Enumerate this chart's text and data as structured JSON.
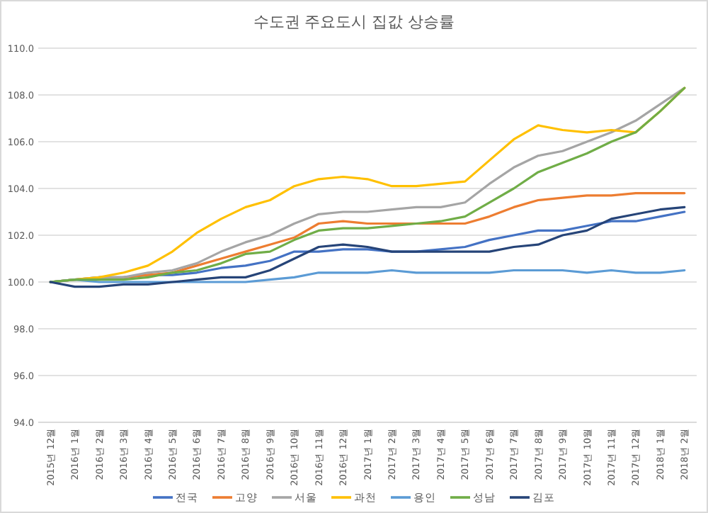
{
  "chart_data": {
    "type": "line",
    "title": "수도권 주요도시 집값 상승률",
    "categories": [
      "2015년 12월",
      "2016년 1월",
      "2016년 2월",
      "2016년 3월",
      "2016년 4월",
      "2016년 5월",
      "2016년 6월",
      "2016년 7월",
      "2016년 8월",
      "2016년 9월",
      "2016년 10월",
      "2016년 11월",
      "2016년 12월",
      "2017년 1월",
      "2017년 2월",
      "2017년 3월",
      "2017년 4월",
      "2017년 5월",
      "2017년 6월",
      "2017년 7월",
      "2017년 8월",
      "2017년 9월",
      "2017년 10월",
      "2017년 11월",
      "2017년 12월",
      "2018년 1월",
      "2018년 2월"
    ],
    "series": [
      {
        "name": "전국",
        "color": "#4472c4",
        "values": [
          100,
          100.1,
          100.2,
          100.2,
          100.3,
          100.3,
          100.4,
          100.6,
          100.7,
          100.9,
          101.3,
          101.3,
          101.4,
          101.4,
          101.3,
          101.3,
          101.4,
          101.5,
          101.8,
          102.0,
          102.2,
          102.2,
          102.4,
          102.6,
          102.6,
          102.8,
          103.0
        ]
      },
      {
        "name": "고양",
        "color": "#ed7d31",
        "values": [
          100,
          100.1,
          100.1,
          100.2,
          100.3,
          100.4,
          100.7,
          101.0,
          101.3,
          101.6,
          101.9,
          102.5,
          102.6,
          102.5,
          102.5,
          102.5,
          102.5,
          102.5,
          102.8,
          103.2,
          103.5,
          103.6,
          103.7,
          103.7,
          103.8,
          103.8,
          103.8
        ]
      },
      {
        "name": "서울",
        "color": "#a5a5a5",
        "values": [
          100,
          100.1,
          100.2,
          100.2,
          100.4,
          100.5,
          100.8,
          101.3,
          101.7,
          102.0,
          102.5,
          102.9,
          103.0,
          103.0,
          103.1,
          103.2,
          103.2,
          103.4,
          104.2,
          104.9,
          105.4,
          105.6,
          106.0,
          106.4,
          106.9,
          107.6,
          108.3
        ]
      },
      {
        "name": "과천",
        "color": "#ffc000",
        "values": [
          100,
          100.1,
          100.2,
          100.4,
          100.7,
          101.3,
          102.1,
          102.7,
          103.2,
          103.5,
          104.1,
          104.4,
          104.5,
          104.4,
          104.1,
          104.1,
          104.2,
          104.3,
          105.2,
          106.1,
          106.7,
          106.5,
          106.4,
          106.5,
          106.4,
          107.3,
          108.3
        ]
      },
      {
        "name": "용인",
        "color": "#5b9bd5",
        "values": [
          100,
          100.1,
          100.0,
          100.0,
          100.0,
          100.0,
          100.0,
          100.0,
          100.0,
          100.1,
          100.2,
          100.4,
          100.4,
          100.4,
          100.5,
          100.4,
          100.4,
          100.4,
          100.4,
          100.5,
          100.5,
          100.5,
          100.4,
          100.5,
          100.4,
          100.4,
          100.5
        ]
      },
      {
        "name": "성남",
        "color": "#70ad47",
        "values": [
          100,
          100.1,
          100.1,
          100.1,
          100.2,
          100.4,
          100.5,
          100.8,
          101.2,
          101.3,
          101.8,
          102.2,
          102.3,
          102.3,
          102.4,
          102.5,
          102.6,
          102.8,
          103.4,
          104.0,
          104.7,
          105.1,
          105.5,
          106.0,
          106.4,
          107.3,
          108.3
        ]
      },
      {
        "name": "김포",
        "color": "#264478",
        "values": [
          100,
          99.8,
          99.8,
          99.9,
          99.9,
          100.0,
          100.1,
          100.2,
          100.2,
          100.5,
          101.0,
          101.5,
          101.6,
          101.5,
          101.3,
          101.3,
          101.3,
          101.3,
          101.3,
          101.5,
          101.6,
          102.0,
          102.2,
          102.7,
          102.9,
          103.1,
          103.2
        ]
      }
    ],
    "ylim": [
      94,
      110
    ],
    "yticks": [
      {
        "value": 94,
        "label": "94.0"
      },
      {
        "value": 96,
        "label": "96.0"
      },
      {
        "value": 98,
        "label": "98.0"
      },
      {
        "value": 100,
        "label": "100.0"
      },
      {
        "value": 102,
        "label": "102.0"
      },
      {
        "value": 104,
        "label": "104.0"
      },
      {
        "value": 106,
        "label": "106.0"
      },
      {
        "value": 108,
        "label": "108.0"
      },
      {
        "value": 110,
        "label": "110.0"
      }
    ],
    "grid": "y",
    "legend": "bottom"
  }
}
